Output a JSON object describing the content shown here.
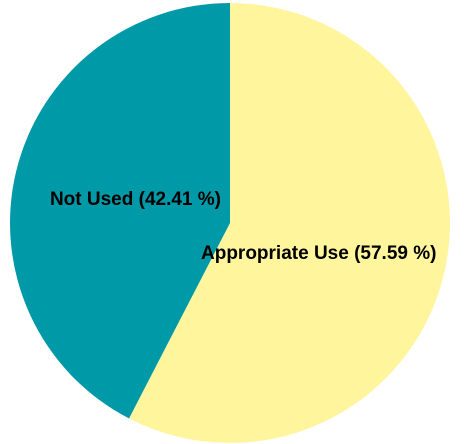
{
  "chart_data": {
    "type": "pie",
    "title": "",
    "slices": [
      {
        "name": "Appropriate Use",
        "value": 57.59,
        "label": "Appropriate Use (57.59 %)",
        "color": "#FFF59D"
      },
      {
        "name": "Not Used",
        "value": 42.41,
        "label": "Not Used (42.41 %)",
        "color": "#0099A8"
      }
    ],
    "start": "top",
    "direction": "clockwise",
    "legend": "none",
    "labels": "inside"
  }
}
